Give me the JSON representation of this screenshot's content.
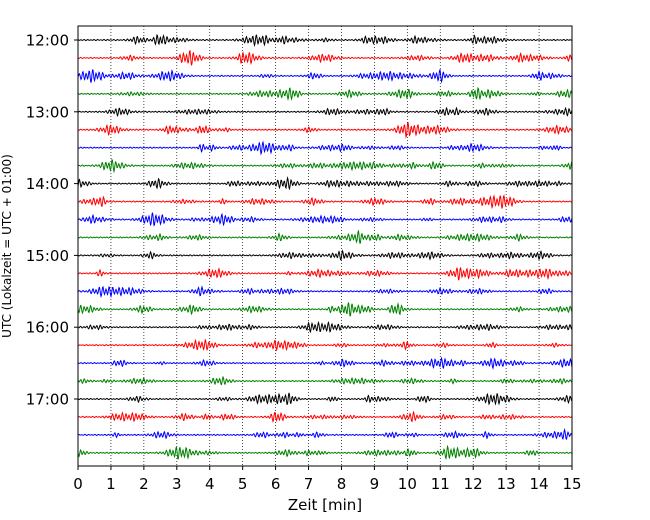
{
  "chart_data": {
    "type": "line",
    "title": "",
    "xlabel": "Zeit  [min]",
    "ylabel": "UTC (Lokalzeit = UTC + 01:00)",
    "xlim": [
      0,
      15
    ],
    "x_ticks": [
      0,
      1,
      2,
      3,
      4,
      5,
      6,
      7,
      8,
      9,
      10,
      11,
      12,
      13,
      14,
      15
    ],
    "y_tick_labels": [
      "12:00",
      "13:00",
      "14:00",
      "15:00",
      "16:00",
      "17:00"
    ],
    "grid": "vertical dotted",
    "legend": "none",
    "trace_interval_minutes": 15,
    "trace_count": 24,
    "colors": [
      "#000000",
      "#ff0000",
      "#0000ff",
      "#008000"
    ]
  }
}
